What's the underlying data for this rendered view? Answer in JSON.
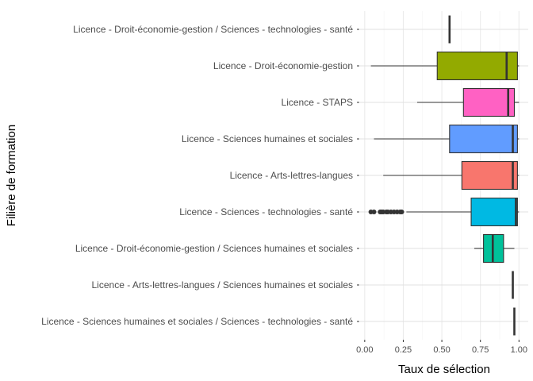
{
  "chart_data": {
    "type": "boxplot",
    "orientation": "horizontal",
    "xlabel": "Taux de sélection",
    "ylabel": "Filière de formation",
    "xlim": [
      -0.03,
      1.06
    ],
    "x_ticks": [
      0,
      0.25,
      0.5,
      0.75,
      1.0
    ],
    "x_tick_labels": [
      "0.00",
      "0.25",
      "0.50",
      "0.75",
      "1.00"
    ],
    "grid": "major gridlines, horizontal and vertical",
    "legend": "none",
    "categories": [
      {
        "label": "Licence - Droit-économie-gestion / Sciences - technologies - santé",
        "whisker_low": 0.55,
        "q1": 0.55,
        "median": 0.55,
        "q3": 0.55,
        "whisker_high": 0.55,
        "outliers": [],
        "color": "#ffffff"
      },
      {
        "label": "Licence - Droit-économie-gestion",
        "whisker_low": 0.04,
        "q1": 0.47,
        "median": 0.92,
        "q3": 0.99,
        "whisker_high": 1.0,
        "outliers": [],
        "color": "#93aa00"
      },
      {
        "label": "Licence - STAPS",
        "whisker_low": 0.34,
        "q1": 0.64,
        "median": 0.93,
        "q3": 0.97,
        "whisker_high": 1.0,
        "outliers": [],
        "color": "#ff61c3"
      },
      {
        "label": "Licence - Sciences humaines et sociales",
        "whisker_low": 0.06,
        "q1": 0.55,
        "median": 0.96,
        "q3": 0.99,
        "whisker_high": 1.0,
        "outliers": [],
        "color": "#619cff"
      },
      {
        "label": "Licence - Arts-lettres-langues",
        "whisker_low": 0.12,
        "q1": 0.63,
        "median": 0.96,
        "q3": 0.99,
        "whisker_high": 1.0,
        "outliers": [],
        "color": "#f8766d"
      },
      {
        "label": "Licence - Sciences - technologies - santé",
        "whisker_low": 0.27,
        "q1": 0.69,
        "median": 0.98,
        "q3": 0.99,
        "whisker_high": 1.0,
        "outliers": [
          0.04,
          0.06,
          0.1,
          0.11,
          0.12,
          0.14,
          0.15,
          0.17,
          0.19,
          0.21,
          0.23,
          0.24
        ],
        "color": "#00b9e3"
      },
      {
        "label": "Licence - Droit-économie-gestion / Sciences humaines et sociales",
        "whisker_low": 0.71,
        "q1": 0.77,
        "median": 0.83,
        "q3": 0.9,
        "whisker_high": 0.97,
        "outliers": [],
        "color": "#00c19a"
      },
      {
        "label": "Licence - Arts-lettres-langues / Sciences humaines et sociales",
        "whisker_low": 0.96,
        "q1": 0.96,
        "median": 0.96,
        "q3": 0.96,
        "whisker_high": 0.96,
        "outliers": [],
        "color": "#ffffff"
      },
      {
        "label": "Licence - Sciences humaines et sociales / Sciences - technologies - santé",
        "whisker_low": 0.97,
        "q1": 0.97,
        "median": 0.97,
        "q3": 0.97,
        "whisker_high": 0.97,
        "outliers": [],
        "color": "#ffffff"
      }
    ]
  }
}
